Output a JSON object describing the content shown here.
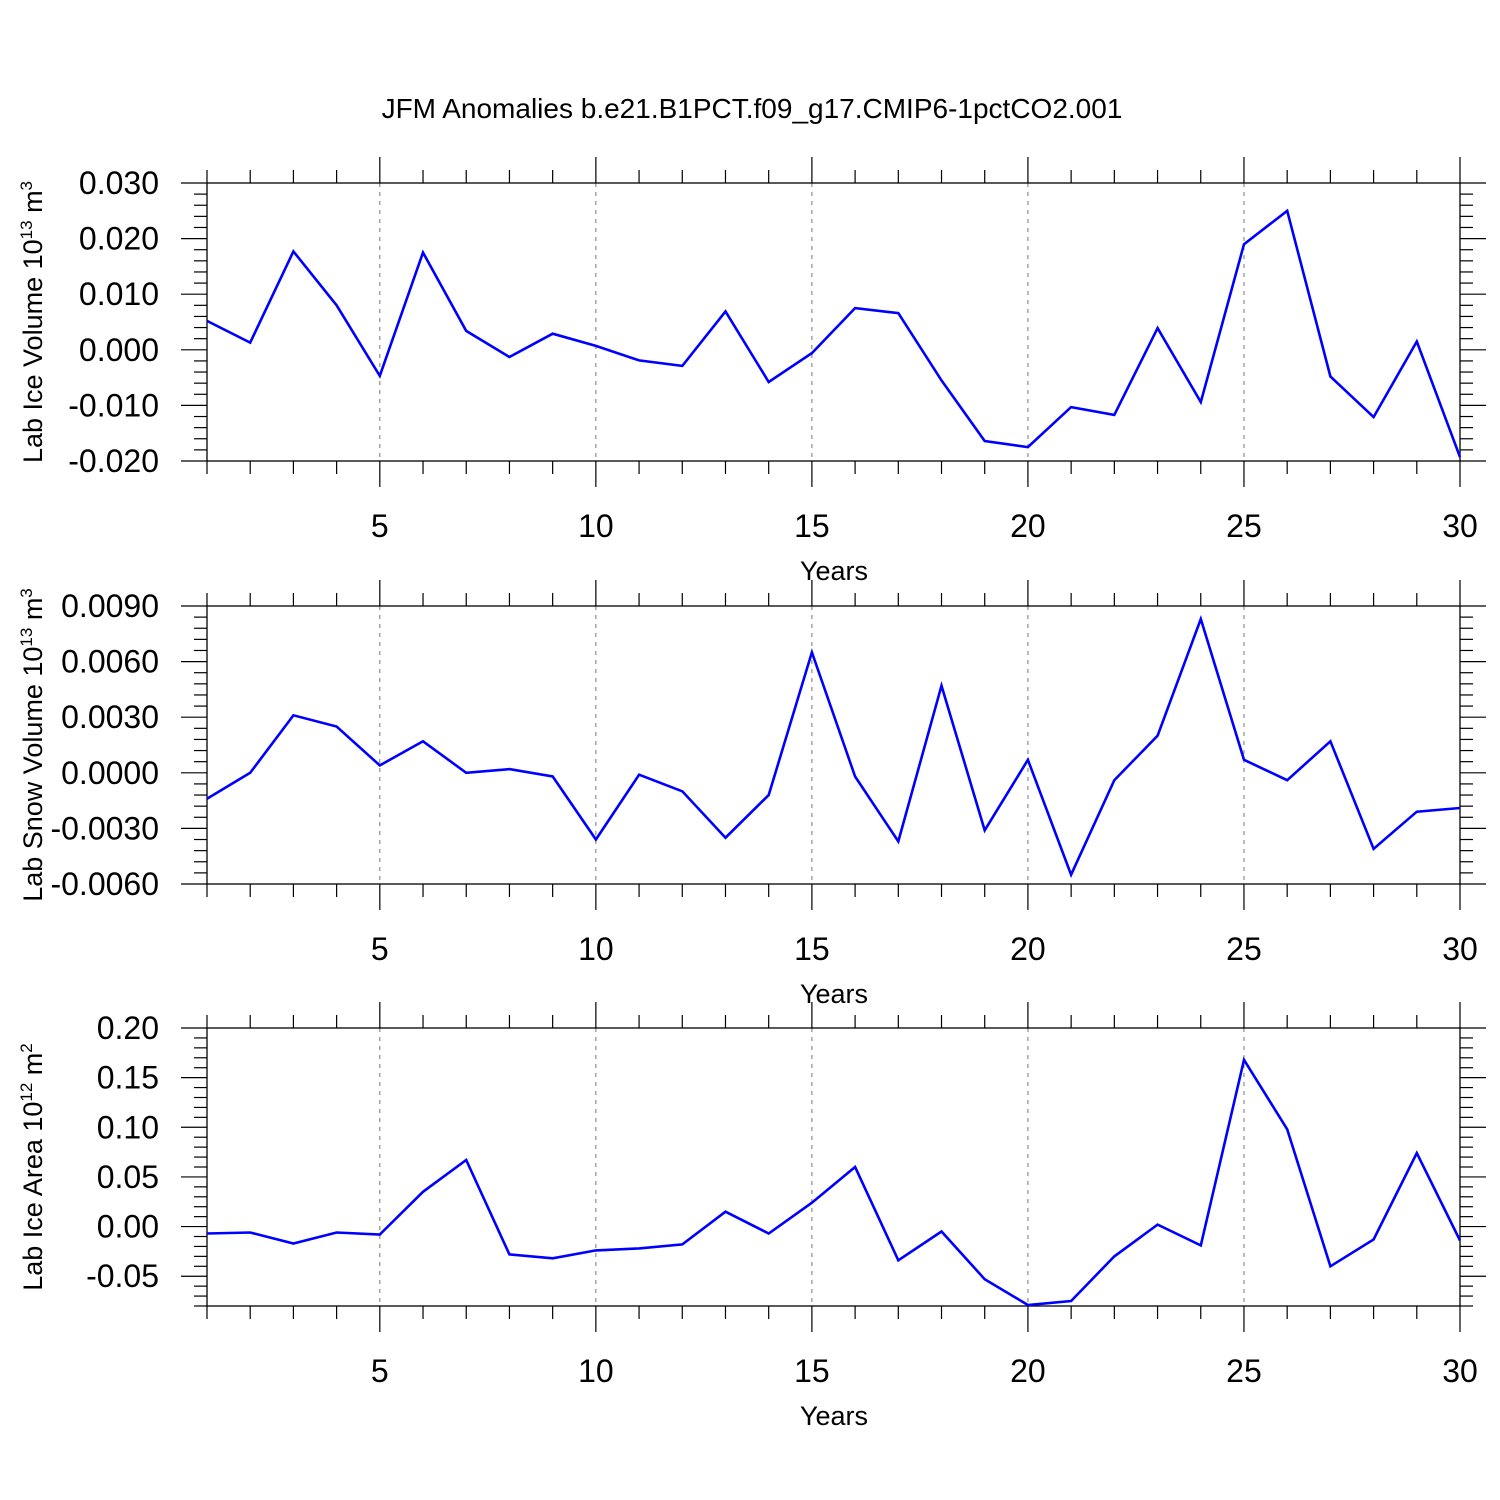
{
  "title": "JFM Anomalies b.e21.B1PCT.f09_g17.CMIP6-1pctCO2.001",
  "colors": {
    "line": "#0000ff",
    "axis": "#000000",
    "grid": "#777777"
  },
  "chart_data": [
    {
      "type": "line",
      "xlabel": "Years",
      "ylabel": {
        "text": "Lab Ice Volume 10",
        "sup": "13",
        "unit": " m",
        "unit_sup": "3"
      },
      "xlim": [
        1,
        30
      ],
      "ylim": [
        -0.02,
        0.03
      ],
      "xticks": [
        5,
        10,
        15,
        20,
        25,
        30
      ],
      "xtick_labels": [
        "5",
        "10",
        "15",
        "20",
        "25",
        "30"
      ],
      "yticks": [
        -0.02,
        -0.01,
        0.0,
        0.01,
        0.02,
        0.03
      ],
      "ytick_labels": [
        "-0.020",
        "-0.010",
        "0.000",
        "0.010",
        "0.020",
        "0.030"
      ],
      "grid": "dashed vertical at major x ticks",
      "x": [
        1,
        2,
        3,
        4,
        5,
        6,
        7,
        8,
        9,
        10,
        11,
        12,
        13,
        14,
        15,
        16,
        17,
        18,
        19,
        20,
        21,
        22,
        23,
        24,
        25,
        26,
        27,
        28,
        29,
        30
      ],
      "y": [
        0.0052,
        0.0013,
        0.0177,
        0.008,
        -0.0047,
        0.0175,
        0.0034,
        -0.0013,
        0.0029,
        0.0007,
        -0.0019,
        -0.0029,
        0.0069,
        -0.0058,
        -0.0006,
        0.0075,
        0.0066,
        -0.0055,
        -0.0164,
        -0.0175,
        -0.0103,
        -0.0117,
        0.0039,
        -0.0094,
        0.019,
        0.025,
        -0.0048,
        -0.0121,
        0.0015,
        -0.0193
      ]
    },
    {
      "type": "line",
      "xlabel": "Years",
      "ylabel": {
        "text": "Lab Snow Volume 10",
        "sup": "13",
        "unit": " m",
        "unit_sup": "3"
      },
      "xlim": [
        1,
        30
      ],
      "ylim": [
        -0.006,
        0.009
      ],
      "xticks": [
        5,
        10,
        15,
        20,
        25,
        30
      ],
      "xtick_labels": [
        "5",
        "10",
        "15",
        "20",
        "25",
        "30"
      ],
      "yticks": [
        -0.006,
        -0.003,
        0.0,
        0.003,
        0.006,
        0.009
      ],
      "ytick_labels": [
        "-0.0060",
        "-0.0030",
        "0.0000",
        "0.0030",
        "0.0060",
        "0.0090"
      ],
      "grid": "dashed vertical at major x ticks",
      "x": [
        1,
        2,
        3,
        4,
        5,
        6,
        7,
        8,
        9,
        10,
        11,
        12,
        13,
        14,
        15,
        16,
        17,
        18,
        19,
        20,
        21,
        22,
        23,
        24,
        25,
        26,
        27,
        28,
        29,
        30
      ],
      "y": [
        -0.0014,
        0.0,
        0.0031,
        0.0025,
        0.0004,
        0.0017,
        0.0,
        0.0002,
        -0.0002,
        -0.0036,
        -0.0001,
        -0.001,
        -0.0035,
        -0.0012,
        0.0065,
        -0.0002,
        -0.0037,
        0.0047,
        -0.0031,
        0.0007,
        -0.0055,
        -0.0004,
        0.002,
        0.0083,
        0.0007,
        -0.0004,
        0.0017,
        -0.0041,
        -0.0021,
        -0.0019
      ]
    },
    {
      "type": "line",
      "xlabel": "Years",
      "ylabel": {
        "text": "Lab Ice Area 10",
        "sup": "12",
        "unit": " m",
        "unit_sup": "2"
      },
      "xlim": [
        1,
        30
      ],
      "ylim": [
        -0.08,
        0.2
      ],
      "xticks": [
        5,
        10,
        15,
        20,
        25,
        30
      ],
      "xtick_labels": [
        "5",
        "10",
        "15",
        "20",
        "25",
        "30"
      ],
      "yticks": [
        -0.05,
        0.0,
        0.05,
        0.1,
        0.15,
        0.2
      ],
      "ytick_labels": [
        "-0.05",
        "0.00",
        "0.05",
        "0.10",
        "0.15",
        "0.20"
      ],
      "grid": "dashed vertical at major x ticks",
      "x": [
        1,
        2,
        3,
        4,
        5,
        6,
        7,
        8,
        9,
        10,
        11,
        12,
        13,
        14,
        15,
        16,
        17,
        18,
        19,
        20,
        21,
        22,
        23,
        24,
        25,
        26,
        27,
        28,
        29,
        30
      ],
      "y": [
        -0.007,
        -0.006,
        -0.017,
        -0.006,
        -0.008,
        0.035,
        0.067,
        -0.028,
        -0.032,
        -0.024,
        -0.022,
        -0.018,
        0.015,
        -0.007,
        0.024,
        0.06,
        -0.034,
        -0.005,
        -0.053,
        -0.079,
        -0.075,
        -0.03,
        0.002,
        -0.019,
        0.168,
        0.098,
        -0.04,
        -0.013,
        0.074,
        -0.014
      ]
    }
  ]
}
